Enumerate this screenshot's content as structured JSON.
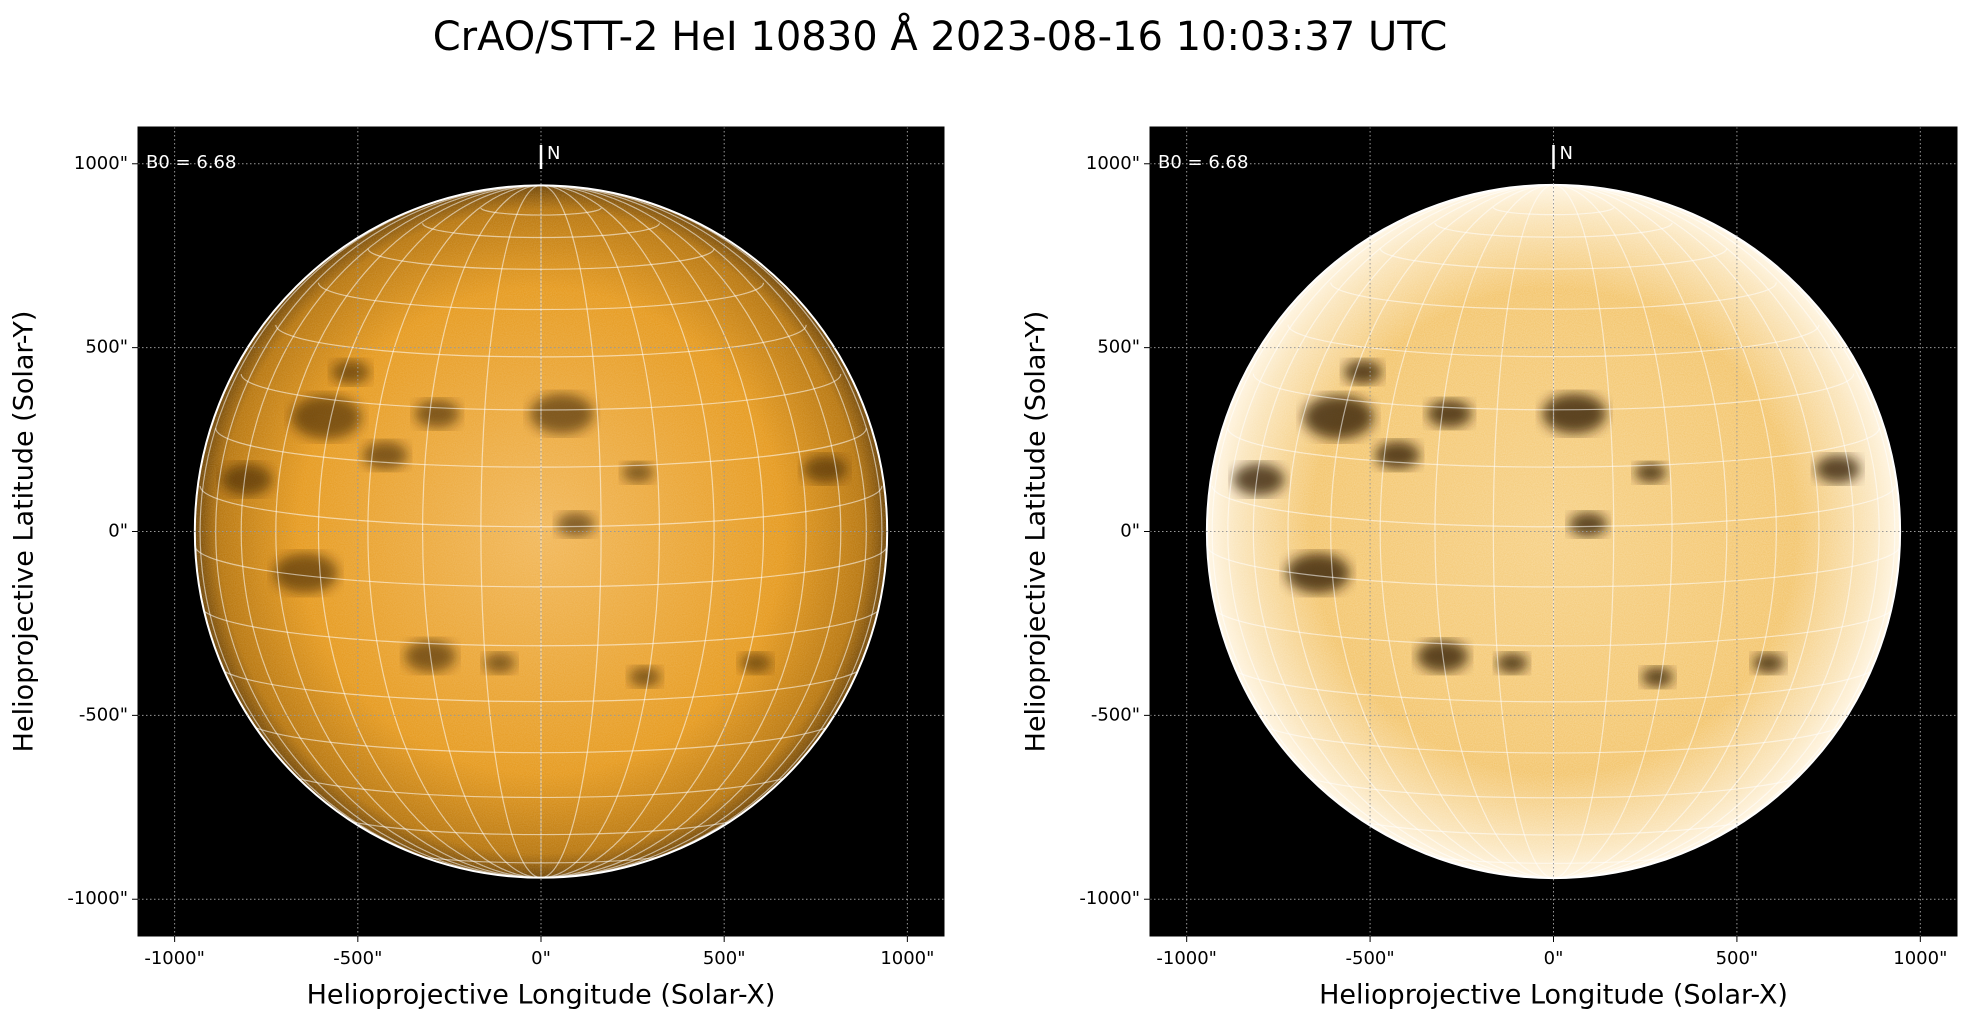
{
  "title": "CrAO/STT-2 HeI 10830 Å 2023-08-16 10:03:37 UTC",
  "chart_data": [
    {
      "type": "image",
      "xlabel": "Helioprojective Longitude (Solar-X)",
      "ylabel": "Helioprojective Latitude (Solar-Y)",
      "xlim": [
        -1100,
        1100
      ],
      "ylim": [
        -1100,
        1100
      ],
      "xticks": [
        {
          "value": -1000,
          "label": "-1000\""
        },
        {
          "value": -500,
          "label": "-500\""
        },
        {
          "value": 0,
          "label": "0\""
        },
        {
          "value": 500,
          "label": "500\""
        },
        {
          "value": 1000,
          "label": "1000\""
        }
      ],
      "yticks": [
        {
          "value": -1000,
          "label": "-1000\""
        },
        {
          "value": -500,
          "label": "-500\""
        },
        {
          "value": 0,
          "label": "0\""
        },
        {
          "value": 500,
          "label": "500\""
        },
        {
          "value": 1000,
          "label": "1000\""
        }
      ],
      "grid": true,
      "annotations": [
        "B0 = 6.68",
        "N"
      ]
    },
    {
      "type": "image",
      "xlabel": "Helioprojective Longitude (Solar-X)",
      "ylabel": "Helioprojective Latitude (Solar-Y)",
      "xlim": [
        -1100,
        1100
      ],
      "ylim": [
        -1100,
        1100
      ],
      "xticks": [
        {
          "value": -1000,
          "label": "-1000\""
        },
        {
          "value": -500,
          "label": "-500\""
        },
        {
          "value": 0,
          "label": "0\""
        },
        {
          "value": 500,
          "label": "500\""
        },
        {
          "value": 1000,
          "label": "1000\""
        }
      ],
      "yticks": [
        {
          "value": -1000,
          "label": "-1000\""
        },
        {
          "value": -500,
          "label": "-500\""
        },
        {
          "value": 0,
          "label": "0\""
        },
        {
          "value": 500,
          "label": "500\""
        },
        {
          "value": 1000,
          "label": "1000\""
        }
      ],
      "grid": true,
      "annotations": [
        "B0 = 6.68",
        "N"
      ]
    }
  ]
}
